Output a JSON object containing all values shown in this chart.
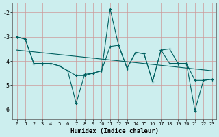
{
  "xlabel": "Humidex (Indice chaleur)",
  "bg_color": "#cceeee",
  "line_color": "#006060",
  "grid_color": "#cc9999",
  "xlim": [
    -0.5,
    23.5
  ],
  "ylim": [
    -6.4,
    -1.6
  ],
  "yticks": [
    -6,
    -5,
    -4,
    -3,
    -2
  ],
  "xticks": [
    0,
    1,
    2,
    3,
    4,
    5,
    6,
    7,
    8,
    9,
    10,
    11,
    12,
    13,
    14,
    15,
    16,
    17,
    18,
    19,
    20,
    21,
    22,
    23
  ],
  "series1_x": [
    0,
    1,
    2,
    3,
    4,
    5,
    6,
    7,
    8,
    9,
    10,
    11,
    12,
    13,
    14,
    15,
    16,
    17,
    18,
    19,
    20,
    21,
    22,
    23
  ],
  "series1_y": [
    -3.0,
    -3.1,
    -4.1,
    -4.1,
    -4.1,
    -4.2,
    -4.4,
    -5.75,
    -4.55,
    -4.5,
    -4.4,
    -1.85,
    -3.35,
    -4.3,
    -3.65,
    -3.7,
    -4.85,
    -3.55,
    -3.5,
    -4.1,
    -4.1,
    -6.05,
    -4.8,
    -4.75
  ],
  "series2_x": [
    0,
    1,
    2,
    3,
    4,
    5,
    6,
    7,
    8,
    9,
    10,
    11,
    12,
    13,
    14,
    15,
    16,
    17,
    18,
    19,
    20,
    21,
    22,
    23
  ],
  "series2_y": [
    -3.0,
    -3.1,
    -4.1,
    -4.1,
    -4.1,
    -4.2,
    -4.4,
    -4.6,
    -4.6,
    -4.5,
    -4.4,
    -3.4,
    -3.35,
    -4.3,
    -3.65,
    -3.7,
    -4.85,
    -3.55,
    -4.1,
    -4.1,
    -4.1,
    -4.8,
    -4.8,
    -4.75
  ],
  "series3_x": [
    0,
    23
  ],
  "series3_y": [
    -3.55,
    -4.4
  ]
}
